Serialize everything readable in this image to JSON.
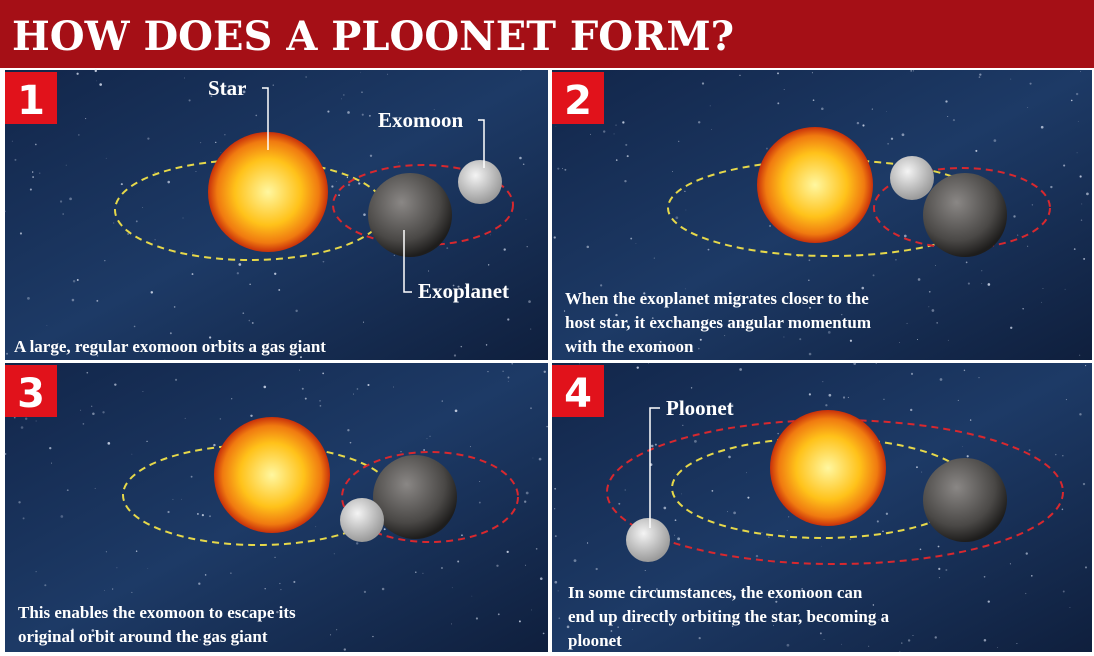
{
  "header": {
    "title": "HOW DOES A PLOONET FORM?"
  },
  "panels": [
    {
      "number": "1",
      "labels": [
        "Star",
        "Exomoon",
        "Exoplanet"
      ],
      "caption": [
        "A large, regular exomoon orbits a gas giant"
      ]
    },
    {
      "number": "2",
      "caption": [
        "When the exoplanet migrates closer to the",
        "host star, it exchanges angular momentum",
        "with the exomoon"
      ]
    },
    {
      "number": "3",
      "caption": [
        "This enables the exomoon to escape its",
        "original orbit around the gas giant"
      ]
    },
    {
      "number": "4",
      "labels": [
        "Ploonet"
      ],
      "caption": [
        "In some circumstances, the exomoon can",
        "end up directly orbiting the star, becoming a",
        "ploonet"
      ]
    }
  ]
}
